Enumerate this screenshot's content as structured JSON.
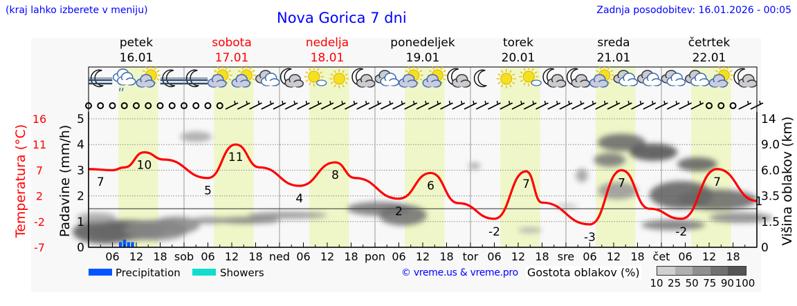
{
  "header": {
    "hint": "(kraj lahko izberete v meniju)",
    "title": "Nova Gorica 7 dni",
    "updated": "Zadnja posodobitev: 16.01.2026 - 00:05"
  },
  "colors": {
    "link": "#0000ff",
    "weekend": "#ff0000",
    "temperature": "#ff0000",
    "precip": "#0055ff",
    "showers": "#11ddcc",
    "daylight": "#eff7c8",
    "plot_bg": "#f8f8f8"
  },
  "days": [
    {
      "name": "petek",
      "date": "16.01",
      "weekend": false
    },
    {
      "name": "sobota",
      "date": "17.01",
      "weekend": true
    },
    {
      "name": "nedelja",
      "date": "18.01",
      "weekend": true
    },
    {
      "name": "ponedeljek",
      "date": "19.01",
      "weekend": false
    },
    {
      "name": "torek",
      "date": "20.01",
      "weekend": false
    },
    {
      "name": "sreda",
      "date": "21.01",
      "weekend": false
    },
    {
      "name": "četrtek",
      "date": "22.01",
      "weekend": false
    }
  ],
  "icons": [
    "moon-fog",
    "cloud-drizzle",
    "sun-cloud",
    "moon-fog",
    "moon-fog",
    "sun-cloud",
    "sun-cloud",
    "cloudy",
    "moon-cloud",
    "sun-small-cloud",
    "sun",
    "moon-cloud",
    "cloudy",
    "sun-cloud",
    "sun-cloud",
    "moon-cloud",
    "moon",
    "sun",
    "sun-small-cloud",
    "moon-cloud",
    "moon-cloud",
    "sun-cloud",
    "cloudy",
    "cloudy",
    "cloudy",
    "cloudy",
    "sun-cloud",
    "moon-cloud"
  ],
  "wind": [
    "calm",
    "calm",
    "calm",
    "calm",
    "calm",
    "calm",
    "calm",
    "calm",
    "calm",
    "calm",
    "calm",
    "calm",
    "barb",
    "barb",
    "barb",
    "barb",
    "barb",
    "barb",
    "barb",
    "barb",
    "barb",
    "barb",
    "barb",
    "barb",
    "barb",
    "barb",
    "barb",
    "barb",
    "barb",
    "barb",
    "barb",
    "barb",
    "barb",
    "barb",
    "barb",
    "barb",
    "barb",
    "barb",
    "barb",
    "barb",
    "barb",
    "barb",
    "barb",
    "barb",
    "barb",
    "barb",
    "barb",
    "barb",
    "barb",
    "barb",
    "barb",
    "barb",
    "calm",
    "calm",
    "calm",
    "barb",
    "barb"
  ],
  "chart_data": {
    "type": "line",
    "title": "Nova Gorica 7 dni",
    "x_ticks": [
      "06",
      "12",
      "18",
      "sob",
      "06",
      "12",
      "18",
      "ned",
      "06",
      "12",
      "18",
      "pon",
      "06",
      "12",
      "18",
      "tor",
      "06",
      "12",
      "18",
      "sre",
      "06",
      "12",
      "18",
      "čet",
      "06",
      "12",
      "18"
    ],
    "y_left_precip": {
      "label": "Padavine (mm/h)",
      "ticks": [
        "0",
        "1",
        "2",
        "3",
        "4",
        "5"
      ],
      "range": [
        0,
        5
      ]
    },
    "y_left_temp": {
      "label": "Temperatura (°C)",
      "ticks": [
        "-7",
        "-2",
        "2",
        "7",
        "11",
        "16"
      ],
      "range": [
        -7,
        16
      ]
    },
    "y_right_cloud": {
      "label": "Višina oblakov (km)",
      "ticks": [
        "0",
        "1.5",
        "3.5",
        "6.0",
        "9.0",
        "14"
      ]
    },
    "daylight_hours": [
      7.5,
      17.5
    ],
    "temperature": {
      "hours": [
        0,
        6,
        9,
        14,
        19,
        30,
        37,
        43,
        53,
        62,
        67,
        78,
        86,
        93,
        102,
        110,
        114,
        126,
        134,
        141,
        149,
        158,
        168
      ],
      "values": [
        7.0,
        6.8,
        7.3,
        10.0,
        8.7,
        5.4,
        11.4,
        7.3,
        4.0,
        8.2,
        5.4,
        1.7,
        6.3,
        0.9,
        -1.9,
        6.6,
        1.0,
        -2.9,
        6.8,
        -0.1,
        -1.9,
        7.0,
        1.3
      ]
    },
    "temp_labels": [
      {
        "h": 3,
        "t": "7",
        "v": 7.0
      },
      {
        "h": 14,
        "t": "10",
        "v": 10.0
      },
      {
        "h": 30,
        "t": "5",
        "v": 5.4
      },
      {
        "h": 37,
        "t": "11",
        "v": 11.4
      },
      {
        "h": 53,
        "t": "4",
        "v": 4.0
      },
      {
        "h": 62,
        "t": "8",
        "v": 8.2
      },
      {
        "h": 78,
        "t": "2",
        "v": 1.7
      },
      {
        "h": 86,
        "t": "6",
        "v": 6.3
      },
      {
        "h": 102,
        "t": "-2",
        "v": -1.9
      },
      {
        "h": 110,
        "t": "7",
        "v": 6.6
      },
      {
        "h": 126,
        "t": "-3",
        "v": -2.9
      },
      {
        "h": 134,
        "t": "7",
        "v": 6.8
      },
      {
        "h": 149,
        "t": "-2",
        "v": -1.9
      },
      {
        "h": 158,
        "t": "7",
        "v": 7.0
      },
      {
        "h": 168,
        "t": "1",
        "v": 1.3
      }
    ],
    "precipitation": {
      "hours": [
        8,
        9,
        10,
        11
      ],
      "values": [
        0.2,
        0.3,
        0.2,
        0.2
      ]
    },
    "cloud_blobs": [
      {
        "h": 4,
        "km": 0.9,
        "w": 8,
        "d": 3.5,
        "dens": 90
      },
      {
        "h": 10,
        "km": 1.0,
        "w": 10,
        "d": 3,
        "dens": 80
      },
      {
        "h": 2,
        "km": 1.8,
        "w": 5,
        "d": 1.5,
        "dens": 40
      },
      {
        "h": 17,
        "km": 1.0,
        "w": 8,
        "d": 3,
        "dens": 60
      },
      {
        "h": 22,
        "km": 1.3,
        "w": 6,
        "d": 2.5,
        "dens": 60
      },
      {
        "h": 27,
        "km": 10.5,
        "w": 4,
        "d": 1.5,
        "dens": 40
      },
      {
        "h": 30,
        "km": 1.6,
        "w": 4,
        "d": 1,
        "dens": 55
      },
      {
        "h": 40,
        "km": 1.6,
        "w": 8,
        "d": 1,
        "dens": 65
      },
      {
        "h": 50,
        "km": 2.0,
        "w": 10,
        "d": 1,
        "dens": 55
      },
      {
        "h": 73,
        "km": 2.5,
        "w": 8,
        "d": 2,
        "dens": 70
      },
      {
        "h": 79,
        "km": 2.0,
        "w": 6,
        "d": 3,
        "dens": 75
      },
      {
        "h": 97,
        "km": 6.5,
        "w": 1.5,
        "d": 1,
        "dens": 40
      },
      {
        "h": 111,
        "km": 1.0,
        "w": 3,
        "d": 0.8,
        "dens": 35
      },
      {
        "h": 120,
        "km": 2.7,
        "w": 3,
        "d": 0.6,
        "dens": 30
      },
      {
        "h": 124,
        "km": 5.5,
        "w": 1.5,
        "d": 2,
        "dens": 45
      },
      {
        "h": 134,
        "km": 9.4,
        "w": 6,
        "d": 2.5,
        "dens": 80
      },
      {
        "h": 131,
        "km": 7.2,
        "w": 4,
        "d": 2,
        "dens": 70
      },
      {
        "h": 142,
        "km": 8.1,
        "w": 6,
        "d": 2.5,
        "dens": 95
      },
      {
        "h": 149,
        "km": 3.6,
        "w": 8,
        "d": 4,
        "dens": 85
      },
      {
        "h": 153,
        "km": 6.7,
        "w": 5,
        "d": 2,
        "dens": 85
      },
      {
        "h": 158,
        "km": 3.2,
        "w": 10,
        "d": 3,
        "dens": 80
      },
      {
        "h": 147,
        "km": 1.3,
        "w": 8,
        "d": 1.5,
        "dens": 70
      },
      {
        "h": 164,
        "km": 1.8,
        "w": 8,
        "d": 1.5,
        "dens": 60
      },
      {
        "h": 133,
        "km": 4.0,
        "w": 5,
        "d": 2.5,
        "dens": 50
      }
    ]
  },
  "legend": {
    "precipitation": "Precipitation",
    "showers": "Showers",
    "copyright": "© vreme.us & vreme.pro",
    "cloud_density_title": "Gostota oblakov (%)",
    "cloud_density_ticks": [
      "10",
      "25",
      "50",
      "75",
      "90",
      "100"
    ],
    "cloud_density_colors": [
      "#d0d0d0",
      "#b0b0b0",
      "#909090",
      "#707070",
      "#555555"
    ]
  }
}
